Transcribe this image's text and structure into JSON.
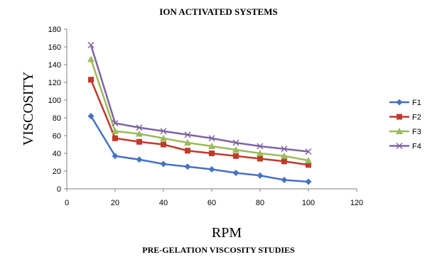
{
  "chart_data": {
    "type": "line",
    "title": "ION ACTIVATED SYSTEMS",
    "subtitle": "PRE-GELATION VISCOSITY STUDIES",
    "xlabel": "RPM",
    "ylabel": "VISCOSITY",
    "x": [
      10,
      20,
      30,
      40,
      50,
      60,
      70,
      80,
      90,
      100
    ],
    "xlim": [
      0,
      120
    ],
    "ylim": [
      0,
      180
    ],
    "xticks": [
      0,
      20,
      40,
      60,
      80,
      100,
      120
    ],
    "yticks": [
      0,
      20,
      40,
      60,
      80,
      100,
      120,
      140,
      160,
      180
    ],
    "grid": false,
    "legend_position": "right",
    "series": [
      {
        "name": "F1",
        "color": "#4472C4",
        "marker": "diamond",
        "values": [
          82,
          37,
          33,
          28,
          25,
          22,
          18,
          15,
          10,
          8
        ]
      },
      {
        "name": "F2",
        "color": "#C0392B",
        "marker": "square",
        "values": [
          123,
          57,
          53,
          50,
          43,
          40,
          37,
          34,
          31,
          27
        ]
      },
      {
        "name": "F3",
        "color": "#9BBB59",
        "marker": "triangle",
        "values": [
          146,
          65,
          62,
          57,
          52,
          48,
          44,
          40,
          37,
          32
        ]
      },
      {
        "name": "F4",
        "color": "#8064A2",
        "marker": "x",
        "values": [
          162,
          74,
          69,
          65,
          61,
          57,
          52,
          48,
          45,
          42
        ]
      }
    ]
  }
}
